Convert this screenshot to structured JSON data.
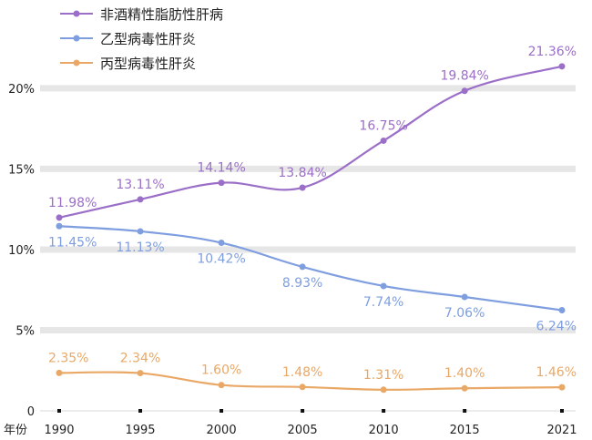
{
  "chart_data": {
    "type": "line",
    "title": "",
    "xlabel": "年份",
    "ylabel": "",
    "ylim": [
      0,
      22
    ],
    "yticks": [
      0,
      5,
      10,
      15,
      20
    ],
    "ytick_labels": [
      "0",
      "5%",
      "10%",
      "15%",
      "20%"
    ],
    "xlim": [
      1990,
      2021
    ],
    "xticks": [
      1990,
      1995,
      2000,
      2005,
      2010,
      2015,
      2021
    ],
    "xtick_labels": [
      "1990",
      "1995",
      "2000",
      "2005",
      "2010",
      "2015",
      "2021"
    ],
    "grid": true,
    "legend": "top-left",
    "series": [
      {
        "name": "非酒精性脂肪性肝病",
        "color": "#9b6fc8",
        "x": [
          1990,
          1995,
          2000,
          2005,
          2010,
          2015,
          2021
        ],
        "values": [
          11.98,
          13.11,
          14.14,
          13.84,
          16.75,
          19.84,
          21.36
        ],
        "labels": [
          "11.98%",
          "13.11%",
          "14.14%",
          "13.84%",
          "16.75%",
          "19.84%",
          "21.36%"
        ],
        "label_pos": "above"
      },
      {
        "name": "乙型病毒性肝炎",
        "color": "#7f9ee0",
        "x": [
          1990,
          1995,
          2000,
          2005,
          2010,
          2015,
          2021
        ],
        "values": [
          11.45,
          11.13,
          10.42,
          8.93,
          7.74,
          7.06,
          6.24
        ],
        "labels": [
          "11.45%",
          "11.13%",
          "10.42%",
          "8.93%",
          "7.74%",
          "7.06%",
          "6.24%"
        ],
        "label_pos": "below"
      },
      {
        "name": "丙型病毒性肝炎",
        "color": "#e9a866",
        "x": [
          1990,
          1995,
          2000,
          2005,
          2010,
          2015,
          2021
        ],
        "values": [
          2.35,
          2.34,
          1.6,
          1.48,
          1.31,
          1.4,
          1.46
        ],
        "labels": [
          "2.35%",
          "2.34%",
          "1.60%",
          "1.48%",
          "1.31%",
          "1.40%",
          "1.46%"
        ],
        "label_pos": "above"
      }
    ]
  }
}
